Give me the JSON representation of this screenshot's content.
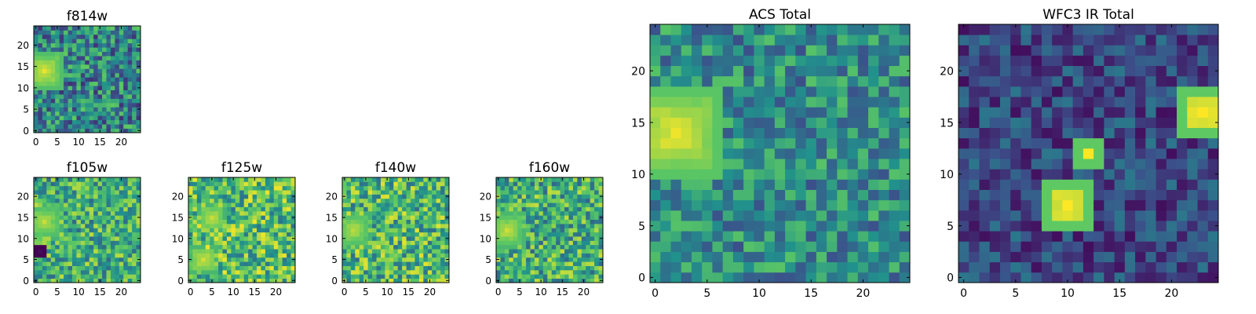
{
  "colormap": [
    "#440154",
    "#3b528b",
    "#21918c",
    "#5ec962",
    "#fde725"
  ],
  "chart_data": [
    {
      "type": "heatmap",
      "title": "f814w",
      "size": 25,
      "xticks": [
        0,
        5,
        10,
        15,
        20
      ],
      "yticks": [
        0,
        5,
        10,
        15,
        20
      ],
      "hotspots": [
        {
          "x": 2,
          "y": 14,
          "r": 3,
          "v": 0.95
        }
      ],
      "base": 0.45,
      "noise": 0.3
    },
    {
      "type": "heatmap",
      "title": "f105w",
      "size": 25,
      "xticks": [
        0,
        5,
        10,
        15,
        20
      ],
      "yticks": [
        0,
        5,
        10,
        15,
        20
      ],
      "hotspots": [
        {
          "x": 2,
          "y": 14,
          "r": 3,
          "v": 0.9
        },
        {
          "x": 1,
          "y": 7,
          "r": 1,
          "v": 0.05
        }
      ],
      "base": 0.62,
      "noise": 0.28
    },
    {
      "type": "heatmap",
      "title": "f125w",
      "size": 25,
      "xticks": [
        0,
        5,
        10,
        15,
        20
      ],
      "yticks": [
        0,
        5,
        10,
        15,
        20
      ],
      "hotspots": [
        {
          "x": 5,
          "y": 15,
          "r": 2,
          "v": 0.9
        },
        {
          "x": 3,
          "y": 5,
          "r": 2,
          "v": 0.92
        }
      ],
      "base": 0.68,
      "noise": 0.3
    },
    {
      "type": "heatmap",
      "title": "f140w",
      "size": 25,
      "xticks": [
        0,
        5,
        10,
        15,
        20
      ],
      "yticks": [
        0,
        5,
        10,
        15,
        20
      ],
      "hotspots": [
        {
          "x": 2,
          "y": 12,
          "r": 3,
          "v": 0.9
        }
      ],
      "base": 0.66,
      "noise": 0.3
    },
    {
      "type": "heatmap",
      "title": "f160w",
      "size": 25,
      "xticks": [
        0,
        5,
        10,
        15,
        20
      ],
      "yticks": [
        0,
        5,
        10,
        15,
        20
      ],
      "hotspots": [
        {
          "x": 2,
          "y": 12,
          "r": 3,
          "v": 0.92
        }
      ],
      "base": 0.62,
      "noise": 0.3
    },
    {
      "type": "heatmap",
      "title": "ACS Total",
      "size": 25,
      "xticks": [
        0,
        5,
        10,
        15,
        20
      ],
      "yticks": [
        0,
        5,
        10,
        15,
        20
      ],
      "hotspots": [
        {
          "x": 2,
          "y": 14,
          "r": 3,
          "v": 0.98
        }
      ],
      "base": 0.48,
      "noise": 0.24
    },
    {
      "type": "heatmap",
      "title": "WFC3 IR Total",
      "size": 25,
      "xticks": [
        0,
        5,
        10,
        15,
        20
      ],
      "yticks": [
        0,
        5,
        10,
        15,
        20
      ],
      "hotspots": [
        {
          "x": 10,
          "y": 7,
          "r": 1,
          "v": 1.0
        },
        {
          "x": 12,
          "y": 12,
          "r": 0,
          "v": 1.0
        },
        {
          "x": 23,
          "y": 16,
          "r": 1,
          "v": 1.0
        }
      ],
      "base": 0.22,
      "noise": 0.18
    }
  ]
}
